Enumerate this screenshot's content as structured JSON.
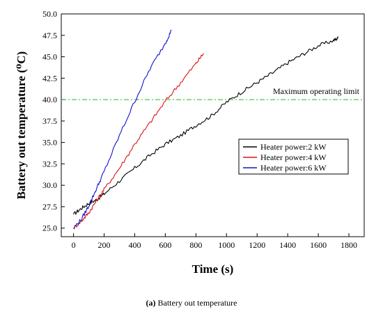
{
  "caption": {
    "label": "(a)",
    "text": "Battery out temperature"
  },
  "chart_data": {
    "type": "line",
    "title": "",
    "xlabel": "Time (s)",
    "ylabel": "Battery out temperature (⁰C)",
    "xlim": [
      -80,
      1900
    ],
    "ylim": [
      24.0,
      50.0
    ],
    "xticks": [
      0,
      200,
      400,
      600,
      800,
      1000,
      1200,
      1400,
      1600,
      1800
    ],
    "yticks": [
      25.0,
      27.5,
      30.0,
      32.5,
      35.0,
      37.5,
      40.0,
      42.5,
      45.0,
      47.5,
      50.0
    ],
    "grid": false,
    "legend": {
      "placement": "center-right"
    },
    "annotations": [
      {
        "text": "Maximum operating limit",
        "type": "hline",
        "y": 40.0,
        "color": "#22bb22"
      }
    ],
    "series": [
      {
        "name": "Heater power:2 kW",
        "color": "#000000",
        "points": [
          [
            0,
            26.6
          ],
          [
            50,
            27.3
          ],
          [
            100,
            27.9
          ],
          [
            150,
            28.3
          ],
          [
            200,
            29.0
          ],
          [
            300,
            30.5
          ],
          [
            400,
            32.0
          ],
          [
            500,
            33.5
          ],
          [
            600,
            34.8
          ],
          [
            700,
            35.8
          ],
          [
            800,
            37.0
          ],
          [
            900,
            38.1
          ],
          [
            1000,
            39.7
          ],
          [
            1100,
            40.9
          ],
          [
            1200,
            42.0
          ],
          [
            1300,
            43.1
          ],
          [
            1400,
            44.3
          ],
          [
            1500,
            45.3
          ],
          [
            1600,
            46.3
          ],
          [
            1700,
            46.9
          ],
          [
            1730,
            47.2
          ]
        ]
      },
      {
        "name": "Heater power:4 kW",
        "color": "#dd1111",
        "points": [
          [
            0,
            25.0
          ],
          [
            50,
            25.8
          ],
          [
            100,
            26.8
          ],
          [
            150,
            28.2
          ],
          [
            200,
            29.5
          ],
          [
            300,
            32.0
          ],
          [
            400,
            34.8
          ],
          [
            500,
            37.3
          ],
          [
            600,
            39.8
          ],
          [
            700,
            42.0
          ],
          [
            800,
            44.2
          ],
          [
            850,
            45.4
          ]
        ]
      },
      {
        "name": "Heater power:6 kW",
        "color": "#1111cc",
        "points": [
          [
            0,
            25.0
          ],
          [
            50,
            26.0
          ],
          [
            100,
            27.6
          ],
          [
            150,
            29.6
          ],
          [
            200,
            31.6
          ],
          [
            300,
            35.8
          ],
          [
            400,
            39.8
          ],
          [
            500,
            43.6
          ],
          [
            600,
            46.6
          ],
          [
            640,
            48.1
          ]
        ]
      }
    ]
  }
}
